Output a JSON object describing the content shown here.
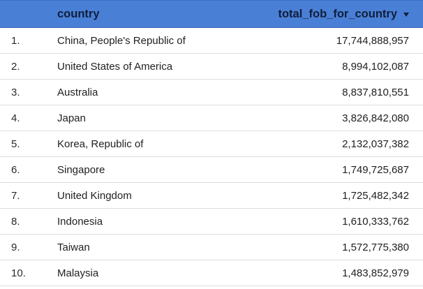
{
  "table": {
    "headers": {
      "index": "",
      "country": "country",
      "fob": "total_fob_for_country"
    },
    "rows": [
      {
        "index": "1.",
        "country": "China, People's Republic of",
        "fob": "17,744,888,957"
      },
      {
        "index": "2.",
        "country": "United States of America",
        "fob": "8,994,102,087"
      },
      {
        "index": "3.",
        "country": "Australia",
        "fob": "8,837,810,551"
      },
      {
        "index": "4.",
        "country": "Japan",
        "fob": "3,826,842,080"
      },
      {
        "index": "5.",
        "country": "Korea, Republic of",
        "fob": "2,132,037,382"
      },
      {
        "index": "6.",
        "country": "Singapore",
        "fob": "1,749,725,687"
      },
      {
        "index": "7.",
        "country": "United Kingdom",
        "fob": "1,725,482,342"
      },
      {
        "index": "8.",
        "country": "Indonesia",
        "fob": "1,610,333,762"
      },
      {
        "index": "9.",
        "country": "Taiwan",
        "fob": "1,572,775,380"
      },
      {
        "index": "10.",
        "country": "Malaysia",
        "fob": "1,483,852,979"
      }
    ],
    "sort_icon": "sort-descending-icon",
    "colors": {
      "header_bg": "#4a7fd6",
      "header_text": "#0f1f3a",
      "row_divider": "#dcdcdc"
    }
  }
}
